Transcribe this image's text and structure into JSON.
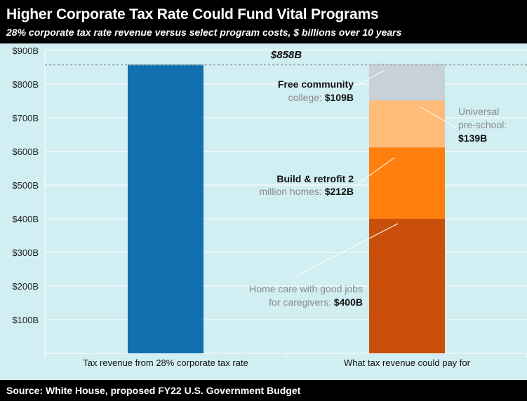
{
  "header": {
    "title": "Higher Corporate Tax Rate Could Fund Vital Programs",
    "subtitle": "28% corporate tax rate revenue versus select program costs, $ billions over 10 years"
  },
  "footer": {
    "source": "Source: White House, proposed FY22 U.S. Government Budget"
  },
  "colors": {
    "background": "#d1eef2",
    "frame": "#000000",
    "revenue_bar": "#1270b0",
    "home_care": "#c94f0a",
    "build_retrofit": "#ff7f0e",
    "universal_preschool": "#ffbb78",
    "free_college": "#c8d0d8",
    "reference_line": "#a9b7b9",
    "label_gray": "#8a8a8a",
    "label_dark": "#111111"
  },
  "chart_data": {
    "type": "bar",
    "stacked": true,
    "categories": [
      "Tax revenue from 28% corporate tax rate",
      "What tax revenue could pay for"
    ],
    "ylim": [
      0,
      900
    ],
    "yticks": [
      100,
      200,
      300,
      400,
      500,
      600,
      700,
      800,
      900
    ],
    "ytick_labels": [
      "$100B",
      "$200B",
      "$300B",
      "$400B",
      "$500B",
      "$600B",
      "$700B",
      "$800B",
      "$900B"
    ],
    "grid": true,
    "series": [
      {
        "key": "revenue",
        "values": [
          858,
          0
        ],
        "color": "#1270b0"
      },
      {
        "key": "home_care",
        "values": [
          0,
          400
        ],
        "color": "#c94f0a"
      },
      {
        "key": "build_retrofit",
        "values": [
          0,
          212
        ],
        "color": "#ff7f0e"
      },
      {
        "key": "universal_preschool",
        "values": [
          0,
          139
        ],
        "color": "#ffbb78"
      },
      {
        "key": "free_college",
        "values": [
          0,
          109
        ],
        "color": "#c8d0d8"
      }
    ],
    "reference_line": {
      "value": 858,
      "label": "$858B"
    },
    "annotations": [
      {
        "key": "free_college",
        "line1": "Free community",
        "line2_prefix": "college: ",
        "value_text": "$109B"
      },
      {
        "key": "universal_preschool",
        "line1": "Universal",
        "line2_prefix": "pre-school:",
        "value_text": "$139B"
      },
      {
        "key": "build_retrofit",
        "line1": "Build & retrofit 2",
        "line2_prefix": "million homes: ",
        "value_text": "$212B"
      },
      {
        "key": "home_care",
        "line1": "Home care with good jobs",
        "line2_prefix": "for caregivers: ",
        "value_text": "$400B"
      }
    ]
  }
}
